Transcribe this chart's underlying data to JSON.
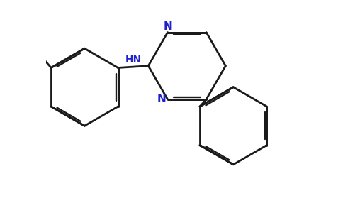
{
  "background_color": "#ffffff",
  "bond_color": "#1a1a1a",
  "n_color": "#2020cc",
  "o_color": "#cc0000",
  "lw": 2.0,
  "dbo": 0.05,
  "xlim": [
    -1.0,
    5.5
  ],
  "ylim": [
    -3.2,
    2.2
  ]
}
